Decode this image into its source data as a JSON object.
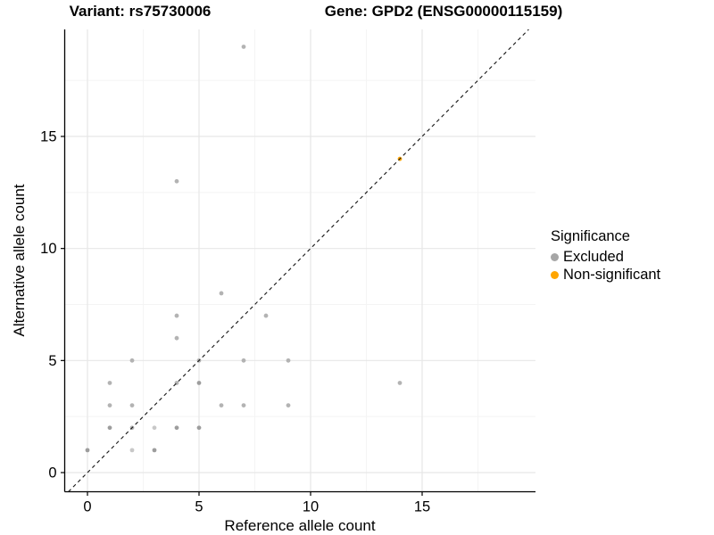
{
  "figure": {
    "background": "#ffffff"
  },
  "chart_data": {
    "type": "scatter",
    "title_left": "Variant: rs75730006",
    "title_right": "Gene: GPD2 (ENSG00000115159)",
    "xlabel": "Reference allele count",
    "ylabel": "Alternative allele count",
    "x_ticks": [
      0,
      5,
      10,
      15
    ],
    "y_ticks": [
      0,
      5,
      10,
      15
    ],
    "xlim": [
      -0.95,
      19.95
    ],
    "ylim": [
      -0.95,
      19.95
    ],
    "grid": {
      "major": [
        0,
        5,
        10,
        15
      ],
      "minor": [
        2.5,
        7.5,
        12.5,
        17.5
      ],
      "major_color": "#e7e7e7",
      "minor_color": "#f4f4f4",
      "background": "#ffffff"
    },
    "axis": {
      "line_color": "#000000",
      "tick_color": "#000000",
      "text_color": "#000000"
    },
    "identity_line": {
      "slope": 1,
      "intercept": 0,
      "style": "dashed",
      "color": "#1c1c1c"
    },
    "point_shades": {
      "normal": "#b3b3b3",
      "dark": "#9d9d9d",
      "light": "#c8c8c8"
    },
    "series": [
      {
        "name": "Excluded",
        "color": "#b3b3b3",
        "points": [
          {
            "x": 0,
            "y": 1,
            "shade": "dark"
          },
          {
            "x": 1,
            "y": 2,
            "shade": "dark"
          },
          {
            "x": 1,
            "y": 3
          },
          {
            "x": 1,
            "y": 4
          },
          {
            "x": 2,
            "y": 1,
            "shade": "light"
          },
          {
            "x": 2,
            "y": 2
          },
          {
            "x": 2,
            "y": 3
          },
          {
            "x": 2,
            "y": 5
          },
          {
            "x": 3,
            "y": 1,
            "shade": "dark"
          },
          {
            "x": 3,
            "y": 2,
            "shade": "light"
          },
          {
            "x": 4,
            "y": 2,
            "shade": "dark"
          },
          {
            "x": 4,
            "y": 4
          },
          {
            "x": 4,
            "y": 6
          },
          {
            "x": 4,
            "y": 7
          },
          {
            "x": 4,
            "y": 13
          },
          {
            "x": 5,
            "y": 2,
            "shade": "dark"
          },
          {
            "x": 5,
            "y": 4,
            "shade": "dark"
          },
          {
            "x": 5,
            "y": 5
          },
          {
            "x": 6,
            "y": 3
          },
          {
            "x": 6,
            "y": 8
          },
          {
            "x": 7,
            "y": 3
          },
          {
            "x": 7,
            "y": 5
          },
          {
            "x": 7,
            "y": 19
          },
          {
            "x": 8,
            "y": 7
          },
          {
            "x": 9,
            "y": 3
          },
          {
            "x": 9,
            "y": 5
          },
          {
            "x": 14,
            "y": 4
          }
        ]
      },
      {
        "name": "Non-significant",
        "color": "#FFA500",
        "points": [
          {
            "x": 14,
            "y": 14
          }
        ]
      }
    ],
    "legend": {
      "title": "Significance",
      "position": "right",
      "items": [
        {
          "label": "Excluded",
          "color": "#a6a6a6"
        },
        {
          "label": "Non-significant",
          "color": "#FFA500"
        }
      ]
    }
  }
}
